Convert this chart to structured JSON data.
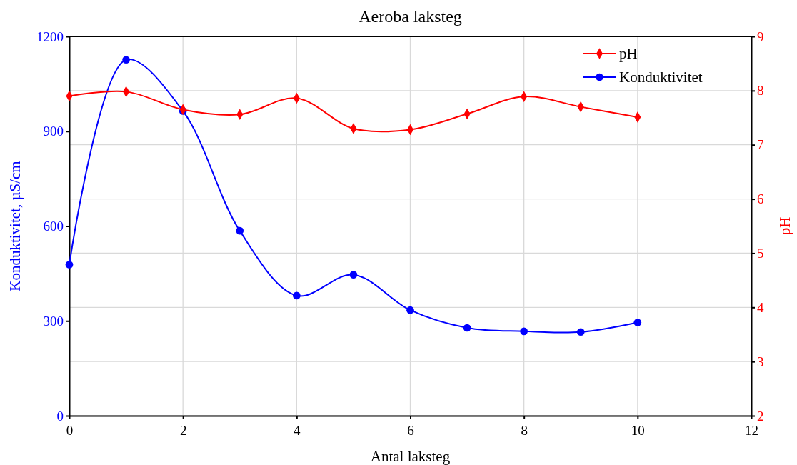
{
  "chart_data": {
    "type": "line",
    "title": "Aeroba laksteg",
    "xlabel": "Antal laksteg",
    "ylabel": "Konduktivitet, µS/cm",
    "y2label": "pH",
    "x": [
      0,
      1,
      2,
      3,
      4,
      5,
      6,
      7,
      8,
      9,
      10
    ],
    "xlim": [
      0,
      12
    ],
    "xticks": [
      0,
      2,
      4,
      6,
      8,
      10,
      12
    ],
    "ylim": [
      0,
      1200
    ],
    "yticks": [
      0,
      300,
      600,
      900,
      1200
    ],
    "y2lim": [
      2,
      9
    ],
    "y2ticks": [
      2,
      3,
      4,
      5,
      6,
      7,
      8,
      9
    ],
    "grid": true,
    "legend": "top right",
    "series": [
      {
        "name": "pH",
        "color": "#ff0000",
        "axis": "y2",
        "marker": "diamond",
        "values": [
          7.9,
          7.98,
          7.65,
          7.56,
          7.86,
          7.3,
          7.28,
          7.57,
          7.89,
          7.7,
          7.51
        ]
      },
      {
        "name": "Konduktivitet",
        "color": "#0000ff",
        "axis": "y",
        "marker": "circle",
        "values": [
          478,
          1126,
          964,
          585,
          380,
          446,
          334,
          278,
          267,
          265,
          295
        ]
      }
    ]
  }
}
